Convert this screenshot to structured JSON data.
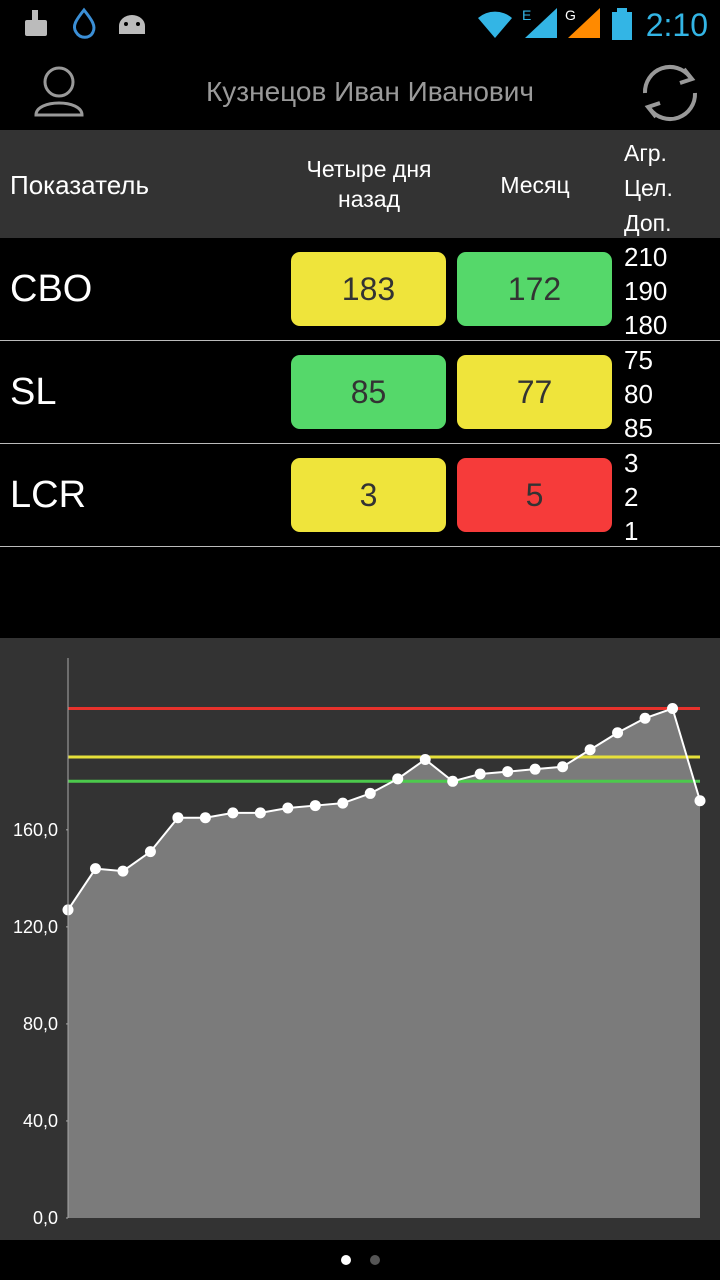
{
  "status_bar": {
    "network_1": "E",
    "network_2": "G",
    "time": "2:10"
  },
  "header": {
    "title": "Кузнецов Иван Иванович"
  },
  "table": {
    "columns": [
      "Показатель",
      "Четыре дня назад",
      "Месяц"
    ],
    "threshold_labels": [
      "Агр.",
      "Цел.",
      "Доп."
    ],
    "rows": [
      {
        "name": "CBO",
        "values": [
          183,
          172
        ],
        "colors": [
          "#efe43b",
          "#55d86a"
        ],
        "thresholds": [
          210,
          190,
          180
        ]
      },
      {
        "name": "SL",
        "values": [
          85,
          77
        ],
        "colors": [
          "#55d86a",
          "#efe43b"
        ],
        "thresholds": [
          75,
          80,
          85
        ]
      },
      {
        "name": "LCR",
        "values": [
          3,
          5
        ],
        "colors": [
          "#efe43b",
          "#f63b3a"
        ],
        "thresholds": [
          3,
          2,
          1
        ]
      }
    ]
  },
  "chart_data": {
    "type": "area",
    "values": [
      127,
      144,
      143,
      151,
      165,
      165,
      167,
      167,
      169,
      170,
      171,
      175,
      181,
      189,
      180,
      183,
      184,
      185,
      186,
      193,
      200,
      206,
      210,
      172
    ],
    "color": "#7b7b7b",
    "line_color": "#ffffff",
    "ylim": [
      0,
      230
    ],
    "yticks": [
      {
        "value": 0,
        "label": "0,0"
      },
      {
        "value": 40,
        "label": "40,0"
      },
      {
        "value": 80,
        "label": "80,0"
      },
      {
        "value": 120,
        "label": "120,0"
      },
      {
        "value": 160,
        "label": "160,0"
      }
    ],
    "reference_lines": [
      {
        "value": 210,
        "color": "#e8322c"
      },
      {
        "value": 190,
        "color": "#e6e03a"
      },
      {
        "value": 180,
        "color": "#4cc94c"
      }
    ]
  }
}
